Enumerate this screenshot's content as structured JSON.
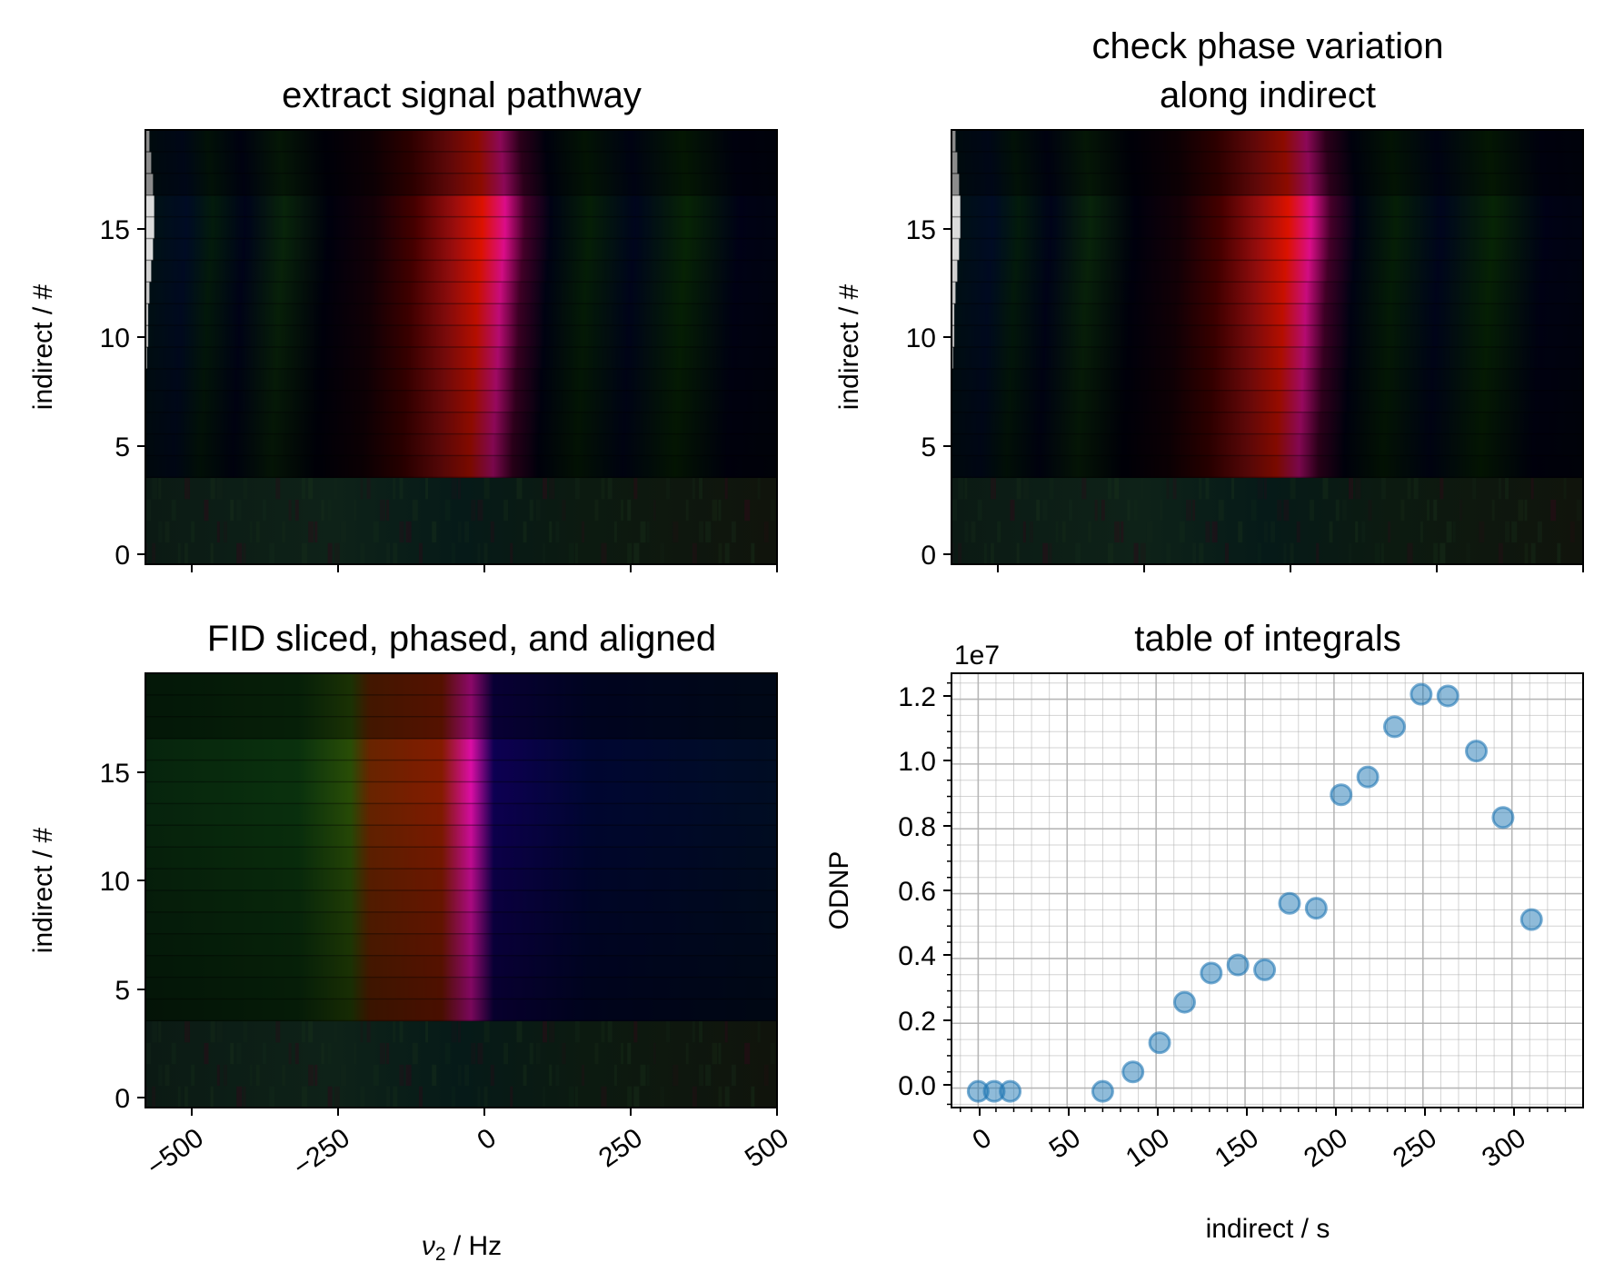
{
  "panels": {
    "top_left": {
      "title": "extract signal pathway",
      "ylabel": "indirect / #",
      "yticks": [
        "0",
        "5",
        "10",
        "15"
      ]
    },
    "top_right": {
      "title_line1": "check phase variation",
      "title_line2": "along indirect",
      "ylabel": "indirect / #",
      "yticks": [
        "0",
        "5",
        "10",
        "15"
      ]
    },
    "bottom_left": {
      "title": "FID sliced, phased, and aligned",
      "ylabel": "indirect / #",
      "xlabel_sym": "ν",
      "xlabel_sub": "2",
      "xlabel_unit": " / Hz",
      "yticks": [
        "0",
        "5",
        "10",
        "15"
      ],
      "xticks": [
        "−500",
        "−250",
        "0",
        "250",
        "500"
      ]
    },
    "bottom_right": {
      "title": "table of integrals",
      "ylabel": "ODNP",
      "xlabel": "indirect / s",
      "offset_text": "1e7",
      "yticks": [
        "0.0",
        "0.2",
        "0.4",
        "0.6",
        "0.8",
        "1.0",
        "1.2"
      ],
      "xticks": [
        "0",
        "50",
        "100",
        "150",
        "200",
        "250",
        "300"
      ]
    }
  },
  "chart_data": [
    {
      "type": "heatmap",
      "title": "extract signal pathway",
      "ylabel": "indirect / #",
      "xlim": [
        -560,
        500
      ],
      "ylim": [
        -0.5,
        19.5
      ],
      "yticks": [
        0,
        5,
        10,
        15
      ],
      "xticks": [
        -500,
        -250,
        0,
        250,
        500
      ],
      "rows": 20,
      "signal_center_hz": [
        -10,
        -10,
        -8,
        -5,
        0,
        0,
        2,
        5,
        5,
        8,
        10,
        10,
        12,
        15,
        18,
        20,
        20,
        18,
        15,
        12
      ],
      "colors": {
        "signal": "#ff0000",
        "center": "#ff00ff",
        "background": "#001a10"
      }
    },
    {
      "type": "heatmap",
      "title": "check phase variation\nalong indirect",
      "ylabel": "indirect / #",
      "xlim": [
        -560,
        500
      ],
      "ylim": [
        -0.5,
        19.5
      ],
      "yticks": [
        0,
        5,
        10,
        15
      ],
      "xticks": [
        -500,
        -250,
        0,
        250,
        500
      ],
      "rows": 20
    },
    {
      "type": "heatmap",
      "title": "FID sliced, phased, and aligned",
      "ylabel": "indirect / #",
      "xlabel": "ν2 / Hz",
      "xlim": [
        -560,
        500
      ],
      "ylim": [
        -0.5,
        19.5
      ],
      "yticks": [
        0,
        5,
        10,
        15
      ],
      "xticks": [
        -500,
        -250,
        0,
        250,
        500
      ],
      "rows": 20,
      "colors": {
        "left": "#0a3a10",
        "mid": "#6a0000",
        "peak": "#ff00ff",
        "right": "#000040"
      }
    },
    {
      "type": "scatter",
      "title": "table of integrals",
      "xlabel": "indirect / s",
      "ylabel": "ODNP",
      "y_multiplier": "1e7",
      "xlim": [
        -15,
        340
      ],
      "ylim": [
        -0.06,
        1.28
      ],
      "xticks": [
        0,
        50,
        100,
        150,
        200,
        250,
        300
      ],
      "yticks": [
        0.0,
        0.2,
        0.4,
        0.6,
        0.8,
        1.0,
        1.2
      ],
      "grid": true,
      "marker_color": "#1f77b4",
      "x": [
        0,
        9,
        18,
        70,
        87,
        102,
        116,
        131,
        146,
        161,
        175,
        190,
        204,
        219,
        234,
        249,
        264,
        280,
        295,
        311
      ],
      "y": [
        -0.01,
        -0.01,
        -0.01,
        -0.01,
        0.05,
        0.14,
        0.265,
        0.355,
        0.38,
        0.365,
        0.57,
        0.555,
        0.905,
        0.96,
        1.115,
        1.215,
        1.21,
        1.04,
        0.835,
        0.52
      ]
    }
  ]
}
